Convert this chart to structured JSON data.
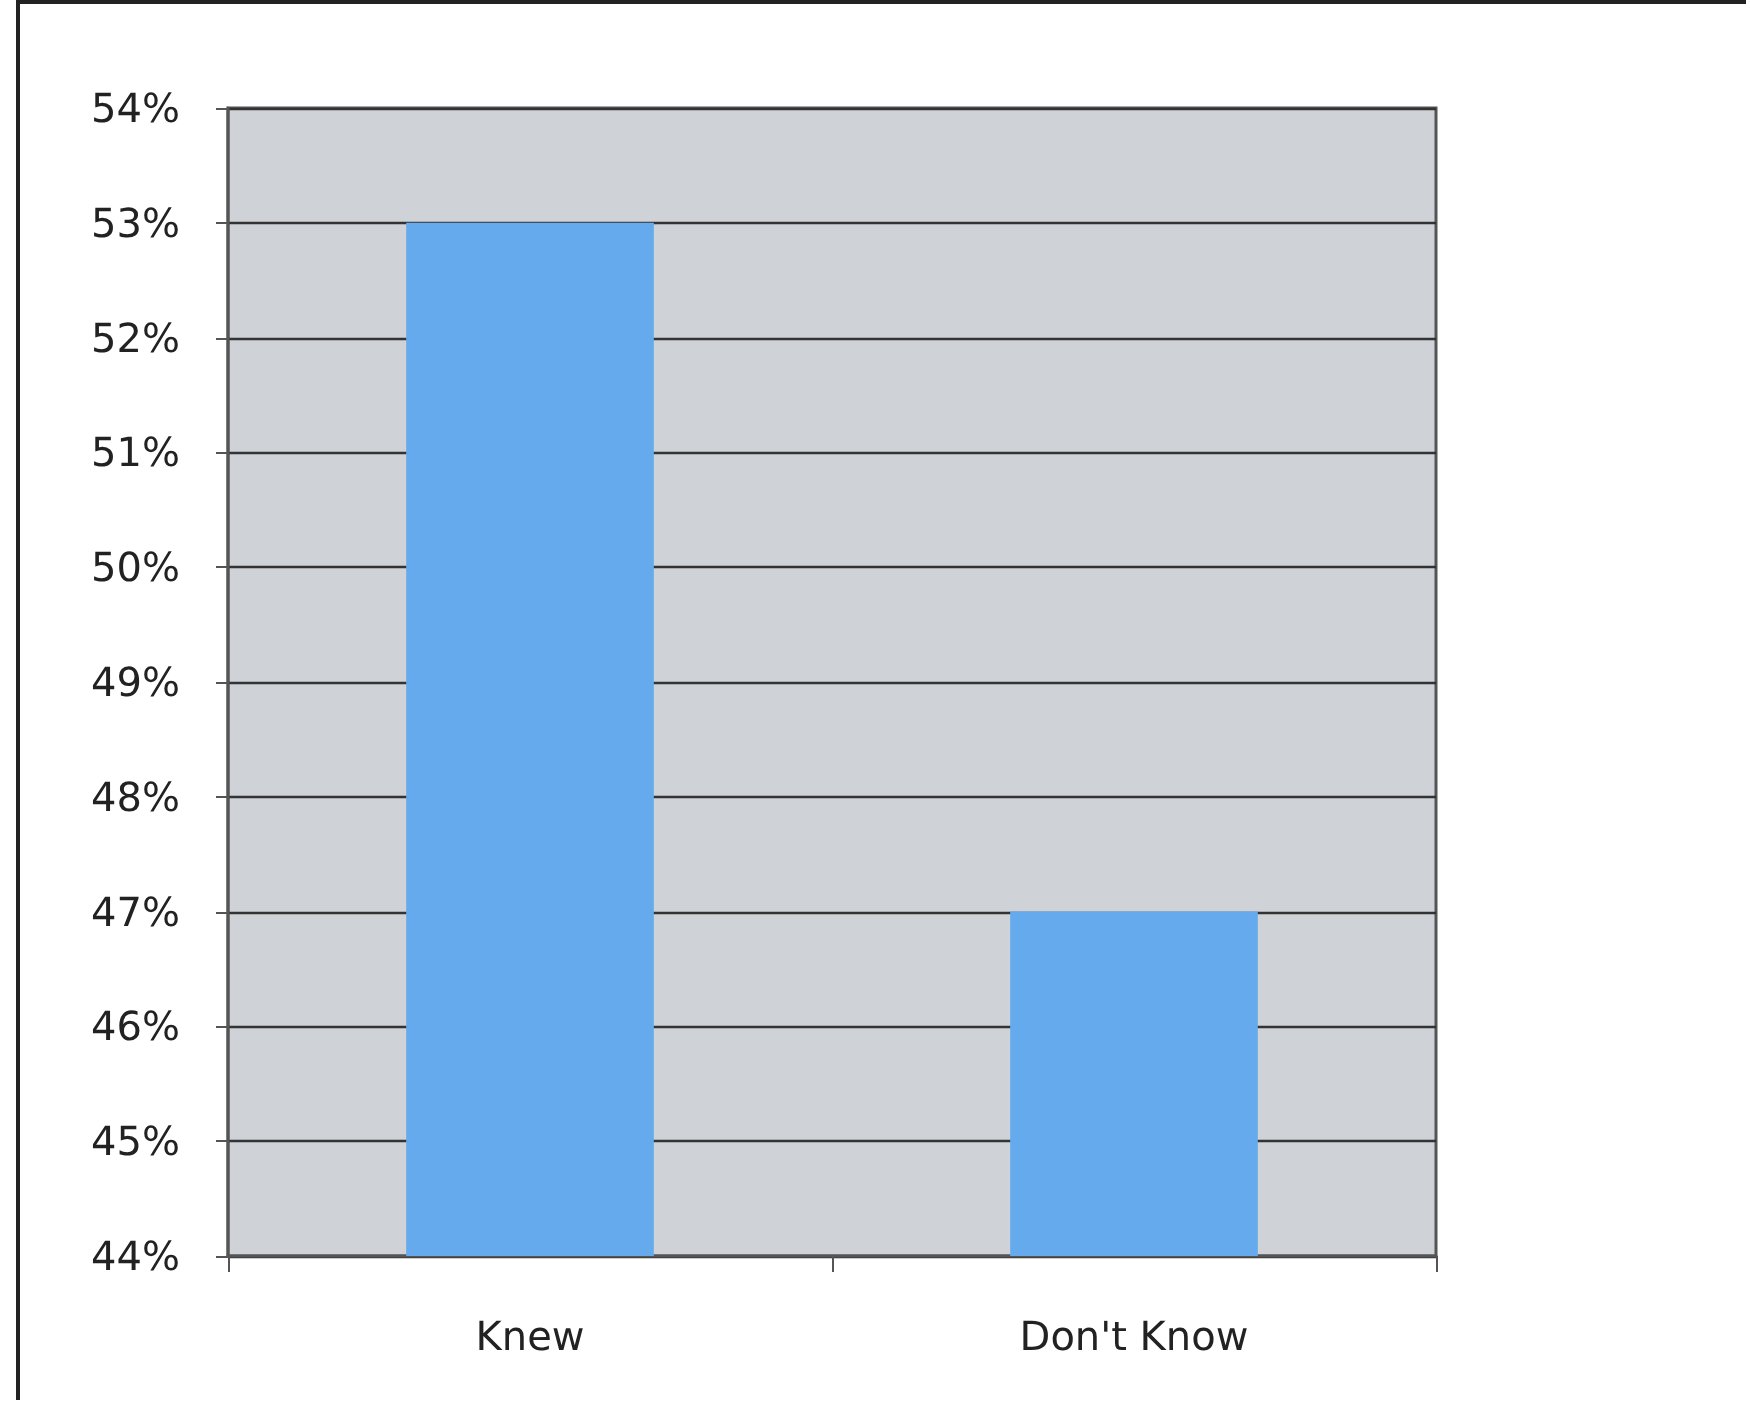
{
  "chart_data": {
    "type": "bar",
    "categories": [
      "Knew",
      "Don't Know"
    ],
    "values": [
      53,
      47
    ],
    "color": "#66aaee",
    "ylim": [
      44,
      54
    ],
    "yticks": [
      {
        "value": 44,
        "label": "44%"
      },
      {
        "value": 45,
        "label": "45%"
      },
      {
        "value": 46,
        "label": "46%"
      },
      {
        "value": 47,
        "label": "47%"
      },
      {
        "value": 48,
        "label": "48%"
      },
      {
        "value": 49,
        "label": "49%"
      },
      {
        "value": 50,
        "label": "50%"
      },
      {
        "value": 51,
        "label": "51%"
      },
      {
        "value": 52,
        "label": "52%"
      },
      {
        "value": 53,
        "label": "53%"
      },
      {
        "value": 54,
        "label": "54%"
      }
    ],
    "grid": true
  }
}
